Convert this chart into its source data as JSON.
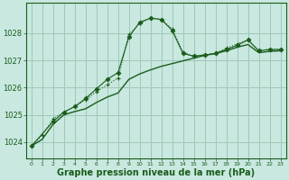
{
  "xlabel": "Graphe pression niveau de la mer (hPa)",
  "background_color": "#c8e8e0",
  "grid_color": "#a0c8b8",
  "line_color": "#1a5c1a",
  "xlim": [
    -0.5,
    23.5
  ],
  "ylim": [
    1023.4,
    1029.1
  ],
  "yticks": [
    1024,
    1025,
    1026,
    1027,
    1028
  ],
  "xticks": [
    0,
    1,
    2,
    3,
    4,
    5,
    6,
    7,
    8,
    9,
    10,
    11,
    12,
    13,
    14,
    15,
    16,
    17,
    18,
    19,
    20,
    21,
    22,
    23
  ],
  "series1_x": [
    0,
    1,
    2,
    3,
    4,
    5,
    6,
    7,
    8,
    9,
    10,
    11,
    12,
    13,
    14,
    15,
    16,
    17,
    18,
    19,
    20,
    21,
    22,
    23
  ],
  "series1_y": [
    1023.85,
    1024.25,
    1024.85,
    1025.1,
    1025.3,
    1025.55,
    1025.85,
    1026.1,
    1026.35,
    1027.95,
    1028.35,
    1028.55,
    1028.5,
    1028.15,
    1027.3,
    1027.15,
    1027.2,
    1027.25,
    1027.45,
    1027.6,
    1027.75,
    1027.35,
    1027.4,
    1027.4
  ],
  "series2_x": [
    0,
    1,
    2,
    3,
    4,
    5,
    6,
    7,
    8,
    9,
    10,
    11,
    12,
    13,
    14,
    15,
    16,
    17,
    18,
    19,
    20,
    21,
    22,
    23
  ],
  "series2_y": [
    1023.85,
    1024.1,
    1024.65,
    1025.0,
    1025.12,
    1025.22,
    1025.45,
    1025.65,
    1025.8,
    1026.3,
    1026.5,
    1026.65,
    1026.78,
    1026.88,
    1026.98,
    1027.08,
    1027.18,
    1027.25,
    1027.35,
    1027.48,
    1027.58,
    1027.28,
    1027.33,
    1027.35
  ],
  "series3_x": [
    0,
    2,
    3,
    4,
    5,
    6,
    7,
    8,
    9,
    10,
    11,
    12,
    13,
    14,
    15,
    16,
    17,
    18,
    19,
    20,
    21,
    22,
    23
  ],
  "series3_y": [
    1023.85,
    1024.75,
    1025.1,
    1025.3,
    1025.6,
    1025.95,
    1026.3,
    1026.55,
    1027.85,
    1028.4,
    1028.55,
    1028.5,
    1028.1,
    1027.25,
    1027.15,
    1027.2,
    1027.25,
    1027.4,
    1027.55,
    1027.75,
    1027.35,
    1027.4,
    1027.4
  ],
  "xlabel_fontsize": 7,
  "tick_fontsize": 5.5,
  "ytick_fontsize": 6
}
